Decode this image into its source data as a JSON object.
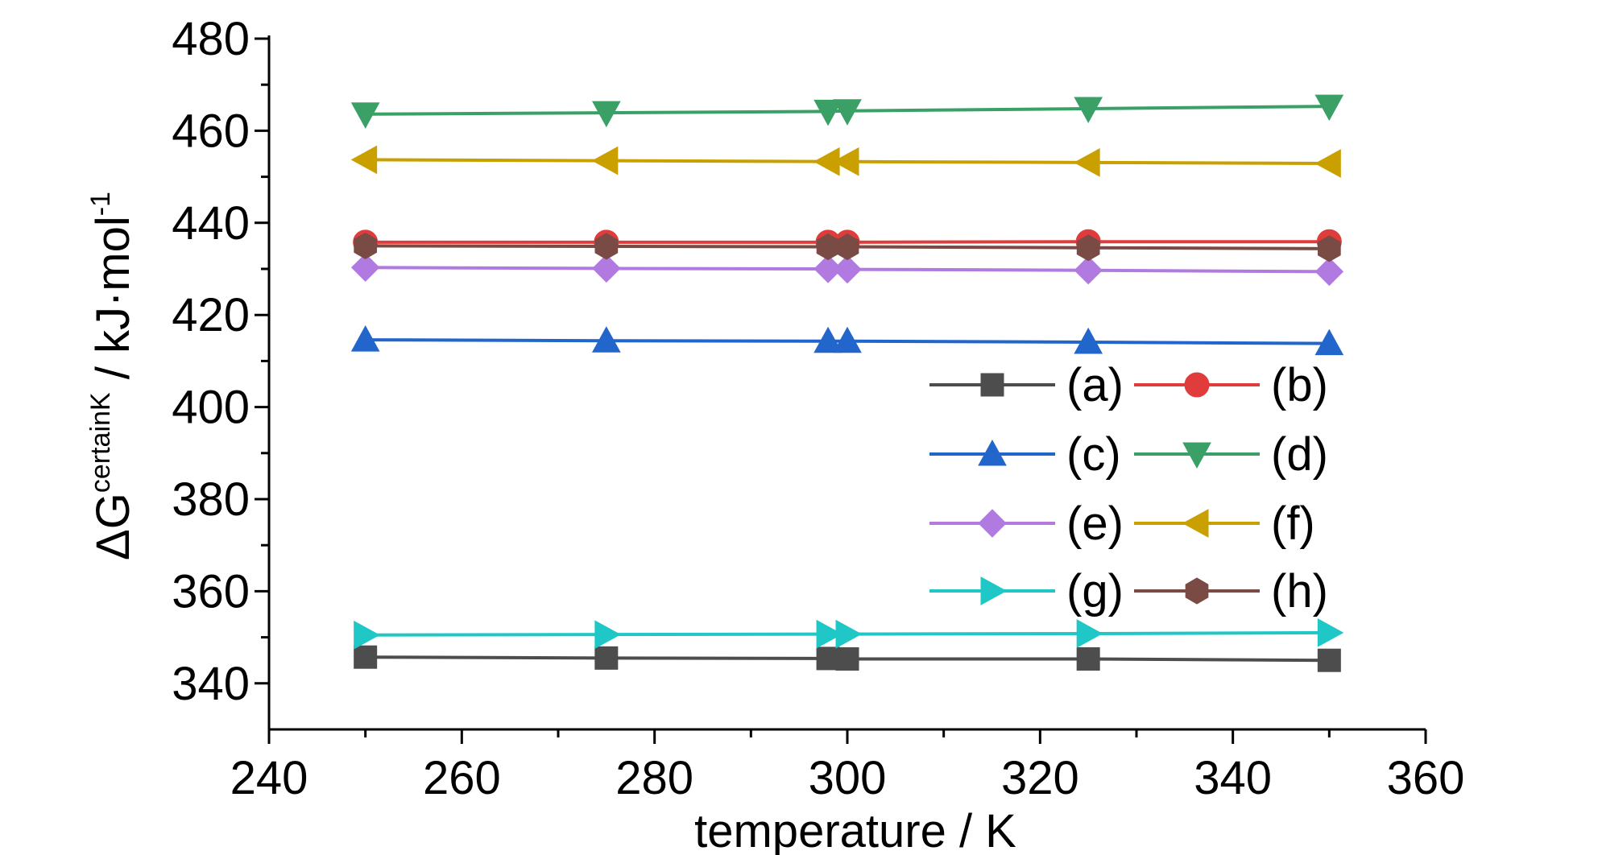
{
  "chart_data": {
    "type": "line",
    "xlabel": "temperature / K",
    "ylabel": {
      "prefix": "ΔG",
      "superscript": "certainK",
      "unit_main": " / kJ·mol",
      "unit_sup": "-1"
    },
    "xlim": [
      240,
      360
    ],
    "ylim": [
      330,
      480
    ],
    "xticks": [
      240,
      260,
      280,
      300,
      320,
      340,
      360
    ],
    "yticks": [
      340,
      360,
      380,
      400,
      420,
      440,
      460,
      480
    ],
    "x": [
      250,
      275,
      298,
      300,
      325,
      350
    ],
    "grid": false,
    "legend_position": "center-right",
    "series": [
      {
        "name": "(a)",
        "color": "#4d4d4d",
        "marker": "square",
        "values": [
          345.7,
          345.5,
          345.4,
          345.3,
          345.3,
          345.0
        ]
      },
      {
        "name": "(b)",
        "color": "#e03c3c",
        "marker": "circle",
        "values": [
          435.8,
          435.8,
          435.8,
          435.8,
          435.9,
          435.9
        ]
      },
      {
        "name": "(c)",
        "color": "#2266cc",
        "marker": "triangle-up",
        "values": [
          414.6,
          414.4,
          414.3,
          414.3,
          414.1,
          413.8
        ]
      },
      {
        "name": "(d)",
        "color": "#3aa066",
        "marker": "triangle-down",
        "values": [
          463.6,
          463.9,
          464.2,
          464.3,
          464.8,
          465.3
        ]
      },
      {
        "name": "(e)",
        "color": "#b07ae0",
        "marker": "diamond",
        "values": [
          430.3,
          430.1,
          430.0,
          429.9,
          429.7,
          429.4
        ]
      },
      {
        "name": "(f)",
        "color": "#c9a000",
        "marker": "triangle-left",
        "values": [
          453.7,
          453.5,
          453.3,
          453.3,
          453.1,
          452.9
        ]
      },
      {
        "name": "(g)",
        "color": "#1fc7c7",
        "marker": "triangle-right",
        "values": [
          350.5,
          350.6,
          350.7,
          350.7,
          350.8,
          351.0
        ]
      },
      {
        "name": "(h)",
        "color": "#7a4a44",
        "marker": "hexagon",
        "values": [
          435.0,
          434.9,
          434.8,
          434.8,
          434.6,
          434.4
        ]
      }
    ]
  }
}
